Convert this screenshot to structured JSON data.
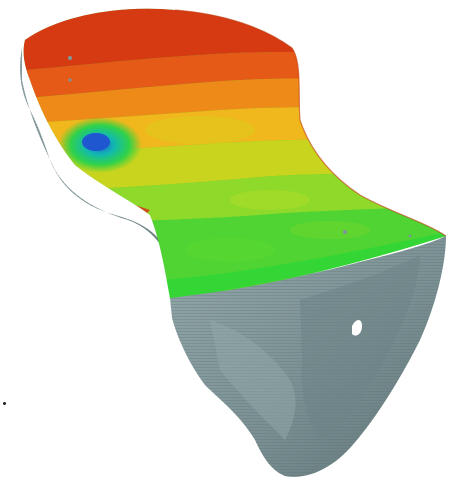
{
  "scene": {
    "subject": "3d-terrain-model",
    "surface_colormap": [
      "#1f6fd6",
      "#12c8a0",
      "#3ad23a",
      "#8ed92a",
      "#d8d61c",
      "#f0a81a",
      "#ea6a18",
      "#d63a12"
    ],
    "side_color": "#7f9598",
    "background": "#ffffff"
  }
}
